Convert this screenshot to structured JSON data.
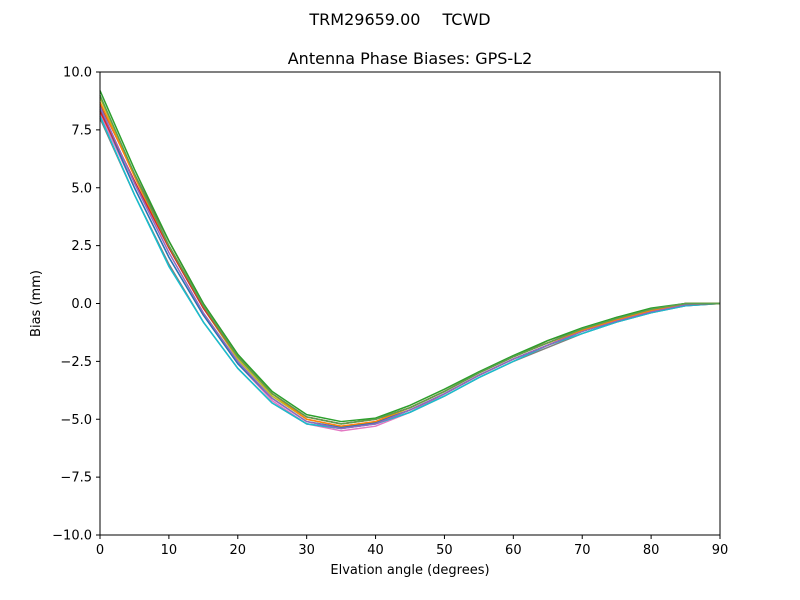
{
  "figure": {
    "suptitle_left": "TRM29659.00",
    "suptitle_right": "TCWD"
  },
  "chart_data": {
    "type": "line",
    "title": "Antenna Phase Biases: GPS-L2",
    "xlabel": "Elvation angle (degrees)",
    "ylabel": "Bias (mm)",
    "xlim": [
      0,
      90
    ],
    "ylim": [
      -10,
      10
    ],
    "xticks": [
      0,
      10,
      20,
      30,
      40,
      50,
      60,
      70,
      80,
      90
    ],
    "yticks": [
      10.0,
      7.5,
      5.0,
      2.5,
      0.0,
      -2.5,
      -5.0,
      -7.5,
      -10.0
    ],
    "ytick_labels": [
      "10.0",
      "7.5",
      "5.0",
      "2.5",
      "0.0",
      "−2.5",
      "−5.0",
      "−7.5",
      "−10.0"
    ],
    "grid": false,
    "legend": "none",
    "x": [
      0,
      5,
      10,
      15,
      20,
      25,
      30,
      35,
      40,
      45,
      50,
      55,
      60,
      65,
      70,
      75,
      80,
      85,
      90
    ],
    "series": [
      {
        "color": "#8c564b",
        "values": [
          8.6,
          5.6,
          2.7,
          0.0,
          -2.2,
          -3.9,
          -4.9,
          -5.2,
          -5.0,
          -4.5,
          -3.8,
          -3.0,
          -2.3,
          -1.6,
          -1.1,
          -0.6,
          -0.25,
          0.0,
          0.0
        ]
      },
      {
        "color": "#e377c2",
        "values": [
          8.2,
          5.0,
          2.0,
          -0.5,
          -2.6,
          -4.2,
          -5.2,
          -5.5,
          -5.3,
          -4.7,
          -3.9,
          -3.1,
          -2.4,
          -1.8,
          -1.2,
          -0.75,
          -0.35,
          -0.1,
          0.0
        ]
      },
      {
        "color": "#7f7f7f",
        "values": [
          8.0,
          4.7,
          1.7,
          -0.8,
          -2.8,
          -4.3,
          -5.2,
          -5.4,
          -5.2,
          -4.7,
          -4.0,
          -3.2,
          -2.5,
          -1.9,
          -1.3,
          -0.8,
          -0.4,
          -0.1,
          0.0
        ]
      },
      {
        "color": "#bcbd22",
        "values": [
          8.9,
          5.5,
          2.4,
          -0.2,
          -2.4,
          -4.0,
          -5.0,
          -5.3,
          -5.1,
          -4.6,
          -3.9,
          -3.1,
          -2.4,
          -1.8,
          -1.2,
          -0.7,
          -0.3,
          0.0,
          0.0
        ]
      },
      {
        "color": "#17becf",
        "values": [
          8.1,
          4.7,
          1.6,
          -0.8,
          -2.8,
          -4.3,
          -5.2,
          -5.4,
          -5.2,
          -4.7,
          -4.0,
          -3.2,
          -2.5,
          -1.8,
          -1.3,
          -0.8,
          -0.4,
          -0.1,
          0.0
        ]
      },
      {
        "color": "#1f77b4",
        "values": [
          8.4,
          5.0,
          2.0,
          -0.5,
          -2.6,
          -4.1,
          -5.1,
          -5.35,
          -5.15,
          -4.6,
          -3.9,
          -3.1,
          -2.4,
          -1.8,
          -1.2,
          -0.75,
          -0.35,
          -0.05,
          0.0
        ]
      },
      {
        "color": "#d62728",
        "values": [
          8.3,
          5.3,
          2.4,
          -0.2,
          -2.3,
          -3.9,
          -4.9,
          -5.2,
          -5.0,
          -4.5,
          -3.8,
          -3.0,
          -2.3,
          -1.7,
          -1.15,
          -0.65,
          -0.3,
          0.0,
          0.0
        ]
      },
      {
        "color": "#9467bd",
        "values": [
          8.5,
          5.2,
          2.2,
          -0.4,
          -2.5,
          -4.1,
          -5.1,
          -5.4,
          -5.2,
          -4.6,
          -3.9,
          -3.1,
          -2.4,
          -1.8,
          -1.2,
          -0.75,
          -0.35,
          -0.05,
          0.0
        ]
      },
      {
        "color": "#ff7f0e",
        "values": [
          8.7,
          5.5,
          2.5,
          -0.1,
          -2.3,
          -3.9,
          -5.0,
          -5.3,
          -5.1,
          -4.5,
          -3.8,
          -3.0,
          -2.3,
          -1.7,
          -1.15,
          -0.7,
          -0.3,
          0.0,
          0.0
        ]
      },
      {
        "color": "#2ca02c",
        "values": [
          9.2,
          5.8,
          2.7,
          0.0,
          -2.2,
          -3.8,
          -4.8,
          -5.1,
          -4.95,
          -4.4,
          -3.7,
          -2.95,
          -2.25,
          -1.6,
          -1.05,
          -0.6,
          -0.2,
          0.0,
          0.0
        ]
      },
      {
        "color": "#59a14f",
        "values": [
          9.0,
          5.6,
          2.5,
          -0.1,
          -2.3,
          -3.9,
          -4.9,
          -5.2,
          -5.0,
          -4.5,
          -3.8,
          -3.0,
          -2.3,
          -1.7,
          -1.1,
          -0.65,
          -0.25,
          0.0,
          0.0
        ]
      }
    ]
  }
}
